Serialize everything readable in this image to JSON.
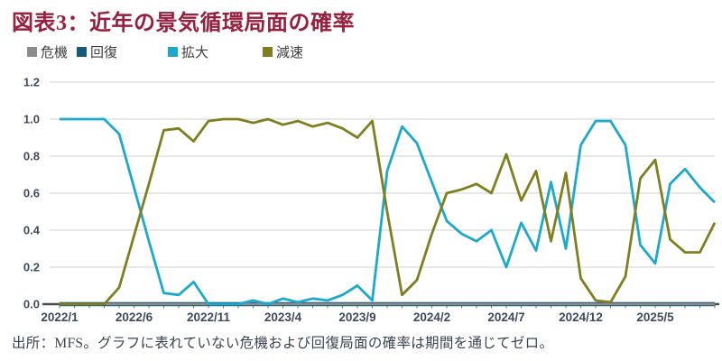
{
  "title": "図表3：近年の景気循環局面の確率",
  "footer": "出所：MFS。グラフに表れていない危機および回復局面の確率は期間を通じてゼロ。",
  "colors": {
    "title_text": "#97203F",
    "crisis": "#8C8C8C",
    "recovery": "#175A78",
    "expansion": "#1BAACB",
    "deceleration": "#7F7F1F",
    "gridline": "#D9D9D9",
    "axis_line": "#4D4D4D",
    "tick_mark": "#737373",
    "axis_label": "#3F4A5C"
  },
  "chart_data": {
    "type": "line",
    "title": "図表3：近年の景気循環局面の確率",
    "xlabel": "",
    "ylabel": "",
    "ylim": [
      0,
      1.2
    ],
    "grid": true,
    "legend_position": "top",
    "y_ticks": [
      "0.0",
      "0.2",
      "0.4",
      "0.6",
      "0.8",
      "1.0",
      "1.2"
    ],
    "x_tick_labels": [
      "2022/1",
      "2022/6",
      "2022/11",
      "2023/4",
      "2023/9",
      "2024/2",
      "2024/7",
      "2024/12",
      "2025/5"
    ],
    "x": [
      "2022/1",
      "2022/2",
      "2022/3",
      "2022/4",
      "2022/5",
      "2022/6",
      "2022/7",
      "2022/8",
      "2022/9",
      "2022/10",
      "2022/11",
      "2022/12",
      "2023/1",
      "2023/2",
      "2023/3",
      "2023/4",
      "2023/5",
      "2023/6",
      "2023/7",
      "2023/8",
      "2023/9",
      "2023/10",
      "2023/11",
      "2023/12",
      "2024/1",
      "2024/2",
      "2024/3",
      "2024/4",
      "2024/5",
      "2024/6",
      "2024/7",
      "2024/8",
      "2024/9",
      "2024/10",
      "2024/11",
      "2024/12",
      "2025/1",
      "2025/2",
      "2025/3",
      "2025/4",
      "2025/5",
      "2025/6",
      "2025/7",
      "2025/8",
      "2025/9"
    ],
    "series": [
      {
        "name": "危機",
        "color": "#8C8C8C",
        "values": [
          0,
          0,
          0,
          0,
          0,
          0,
          0,
          0,
          0,
          0,
          0,
          0,
          0,
          0,
          0,
          0,
          0,
          0,
          0,
          0,
          0,
          0,
          0,
          0,
          0,
          0,
          0,
          0,
          0,
          0,
          0,
          0,
          0,
          0,
          0,
          0,
          0,
          0,
          0,
          0,
          0,
          0,
          0,
          0,
          0
        ]
      },
      {
        "name": "回復",
        "color": "#175A78",
        "values": [
          0,
          0,
          0,
          0,
          0,
          0,
          0,
          0,
          0,
          0,
          0,
          0,
          0,
          0,
          0,
          0,
          0,
          0,
          0,
          0,
          0,
          0,
          0,
          0,
          0,
          0,
          0,
          0,
          0,
          0,
          0,
          0,
          0,
          0,
          0,
          0,
          0,
          0,
          0,
          0,
          0,
          0,
          0,
          0,
          0
        ]
      },
      {
        "name": "拡大",
        "color": "#1BAACB",
        "values": [
          1.0,
          1.0,
          1.0,
          1.0,
          0.92,
          0.63,
          0.34,
          0.06,
          0.05,
          0.12,
          0.0,
          0.0,
          0.0,
          0.02,
          0.0,
          0.03,
          0.01,
          0.03,
          0.02,
          0.05,
          0.1,
          0.02,
          0.72,
          0.96,
          0.87,
          0.66,
          0.45,
          0.38,
          0.34,
          0.4,
          0.2,
          0.44,
          0.29,
          0.66,
          0.3,
          0.86,
          0.99,
          0.99,
          0.86,
          0.32,
          0.22,
          0.65,
          0.73,
          0.63,
          0.55
        ]
      },
      {
        "name": "減速",
        "color": "#7F7F1F",
        "values": [
          0.0,
          0.0,
          0.0,
          0.0,
          0.09,
          0.37,
          0.65,
          0.94,
          0.95,
          0.88,
          0.99,
          1.0,
          1.0,
          0.98,
          1.0,
          0.97,
          0.99,
          0.96,
          0.98,
          0.95,
          0.9,
          0.99,
          0.5,
          0.05,
          0.13,
          0.38,
          0.6,
          0.62,
          0.65,
          0.6,
          0.81,
          0.56,
          0.72,
          0.34,
          0.71,
          0.14,
          0.02,
          0.01,
          0.15,
          0.68,
          0.78,
          0.35,
          0.28,
          0.28,
          0.44
        ]
      }
    ],
    "footnote": "出所：MFS。グラフに表れていない危機および回復局面の確率は期間を通じてゼロ。"
  }
}
